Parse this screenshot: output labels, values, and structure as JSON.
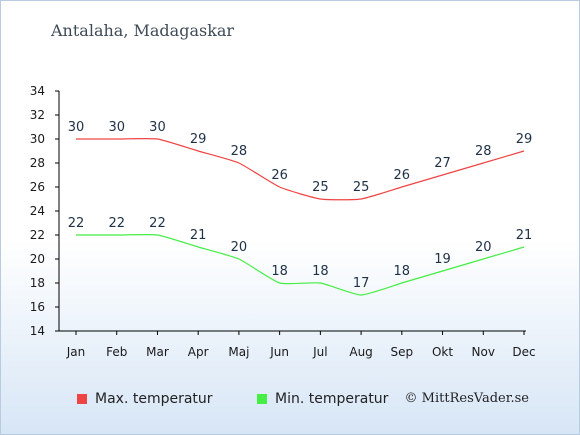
{
  "title": "Antalaha, Madagaskar",
  "credit": "© MittResVader.se",
  "legend": [
    {
      "label": "Max. temperatur",
      "color": "#ee4444"
    },
    {
      "label": "Min. temperatur",
      "color": "#44ee44"
    }
  ],
  "chart_data": {
    "type": "line",
    "categories": [
      "Jan",
      "Feb",
      "Mar",
      "Apr",
      "Maj",
      "Jun",
      "Jul",
      "Aug",
      "Sep",
      "Okt",
      "Nov",
      "Dec"
    ],
    "series": [
      {
        "name": "Max. temperatur",
        "color": "#ee4444",
        "values": [
          30,
          30,
          30,
          29,
          28,
          26,
          25,
          25,
          26,
          27,
          28,
          29
        ]
      },
      {
        "name": "Min. temperatur",
        "color": "#44ee44",
        "values": [
          22,
          22,
          22,
          21,
          20,
          18,
          18,
          17,
          18,
          19,
          20,
          21
        ]
      }
    ],
    "ylim": [
      14,
      34
    ],
    "yticks": [
      14,
      16,
      18,
      20,
      22,
      24,
      26,
      28,
      30,
      32,
      34
    ],
    "grid": false,
    "legend_position": "bottom"
  }
}
